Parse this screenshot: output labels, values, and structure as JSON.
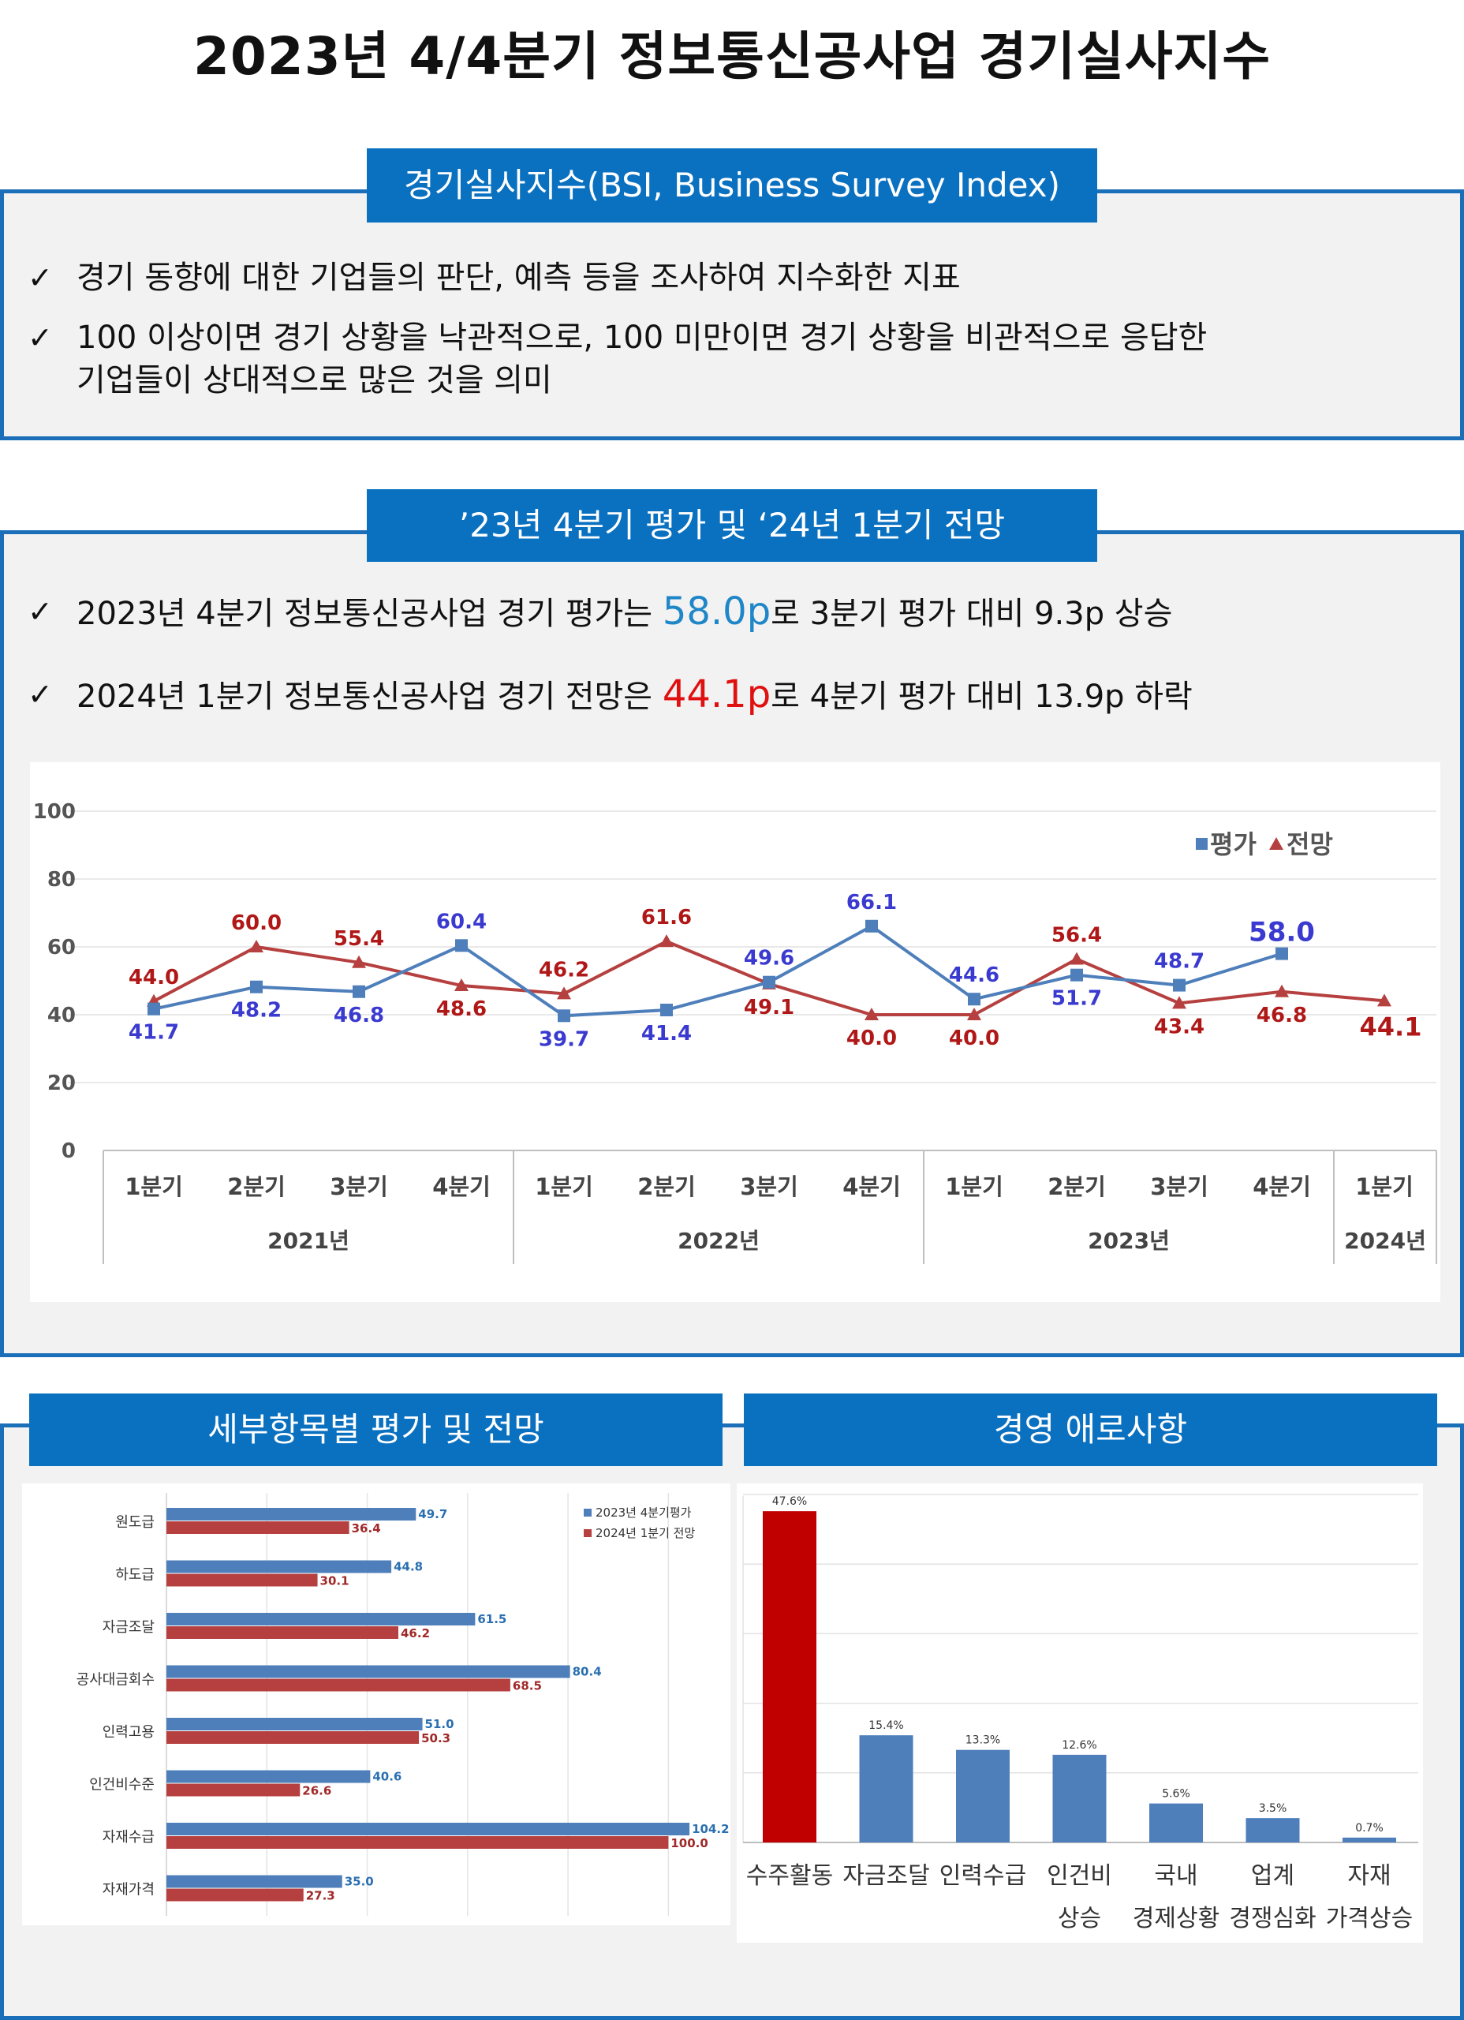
{
  "page_title": "2023년 4/4분기 정보통신공사업 경기실사지수",
  "bsi": {
    "title": "경기실사지수(BSI, Business Survey Index)",
    "bullets": [
      "경기 동향에 대한 기업들의 판단, 예측 등을 조사하여 지수화한 지표",
      "100 이상이면 경기 상황을 낙관적으로, 100 미만이면 경기 상황을 비관적으로 응답한",
      "기업들이 상대적으로 많은 것을 의미"
    ]
  },
  "outlook": {
    "title": "’23년 4분기 평가 및 ‘24년 1분기 전망",
    "line1": {
      "pre": "2023년 4분기 정보통신공사업 경기 평가는 ",
      "value": "58.0p",
      "post": "로 3분기 평가 대비 9.3p 상승"
    },
    "line2": {
      "pre": "2024년 1분기 정보통신공사업 경기 전망은 ",
      "value": "44.1p",
      "post": "로 4분기 평가 대비 13.9p 하락"
    }
  },
  "colors": {
    "blue": "#4e7fbb",
    "red": "#b5403f",
    "blue_label": "#3a3ad0",
    "red_label": "#b01818",
    "dark_red": "#c00000",
    "header": "#0a70c0"
  },
  "sub_title": "세부항목별 평가 및 전망",
  "mgmt_title": "경영 애로사항",
  "chart_data": [
    {
      "type": "line",
      "title": "",
      "categories": [
        "1분기",
        "2분기",
        "3분기",
        "4분기",
        "1분기",
        "2분기",
        "3분기",
        "4분기",
        "1분기",
        "2분기",
        "3분기",
        "4분기",
        "1분기"
      ],
      "years": [
        {
          "label": "2021년",
          "count": 4
        },
        {
          "label": "2022년",
          "count": 4
        },
        {
          "label": "2023년",
          "count": 4
        },
        {
          "label": "2024년",
          "count": 1
        }
      ],
      "ylim": [
        0,
        100
      ],
      "yticks": [
        0,
        20,
        40,
        60,
        80,
        100
      ],
      "legend": "top-right",
      "series": [
        {
          "name": "평가",
          "values": [
            41.7,
            48.2,
            46.8,
            60.4,
            39.7,
            41.4,
            49.6,
            66.1,
            44.6,
            51.7,
            48.7,
            58.0,
            null
          ]
        },
        {
          "name": "전망",
          "values": [
            44.0,
            60.0,
            55.4,
            48.6,
            46.2,
            61.6,
            49.1,
            40.0,
            40.0,
            56.4,
            43.4,
            46.8,
            44.1
          ]
        }
      ]
    },
    {
      "type": "bar",
      "orientation": "horizontal",
      "categories": [
        "원도급",
        "하도급",
        "자금조달",
        "공사대금회수",
        "인력고용",
        "인건비수준",
        "자재수급",
        "자재가격"
      ],
      "xlim": [
        0,
        110
      ],
      "legend": "top-right",
      "series": [
        {
          "name": "2023년 4분기평가",
          "values": [
            49.7,
            44.8,
            61.5,
            80.4,
            51.0,
            40.6,
            104.2,
            35.0
          ]
        },
        {
          "name": "2024년 1분기 전망",
          "values": [
            36.4,
            30.1,
            46.2,
            68.5,
            50.3,
            26.6,
            100.0,
            27.3
          ]
        }
      ]
    },
    {
      "type": "bar",
      "categories": [
        [
          "수주활동"
        ],
        [
          "자금조달"
        ],
        [
          "인력수급"
        ],
        [
          "인건비",
          "상승"
        ],
        [
          "국내",
          "경제상황"
        ],
        [
          "업계",
          "경쟁심화"
        ],
        [
          "자재",
          "가격상승"
        ]
      ],
      "values": [
        47.6,
        15.4,
        13.3,
        12.6,
        5.6,
        3.5,
        0.7
      ],
      "value_labels": [
        "47.6%",
        "15.4%",
        "13.3%",
        "12.6%",
        "5.6%",
        "3.5%",
        "0.7%"
      ],
      "ylim": [
        0,
        50
      ]
    }
  ]
}
